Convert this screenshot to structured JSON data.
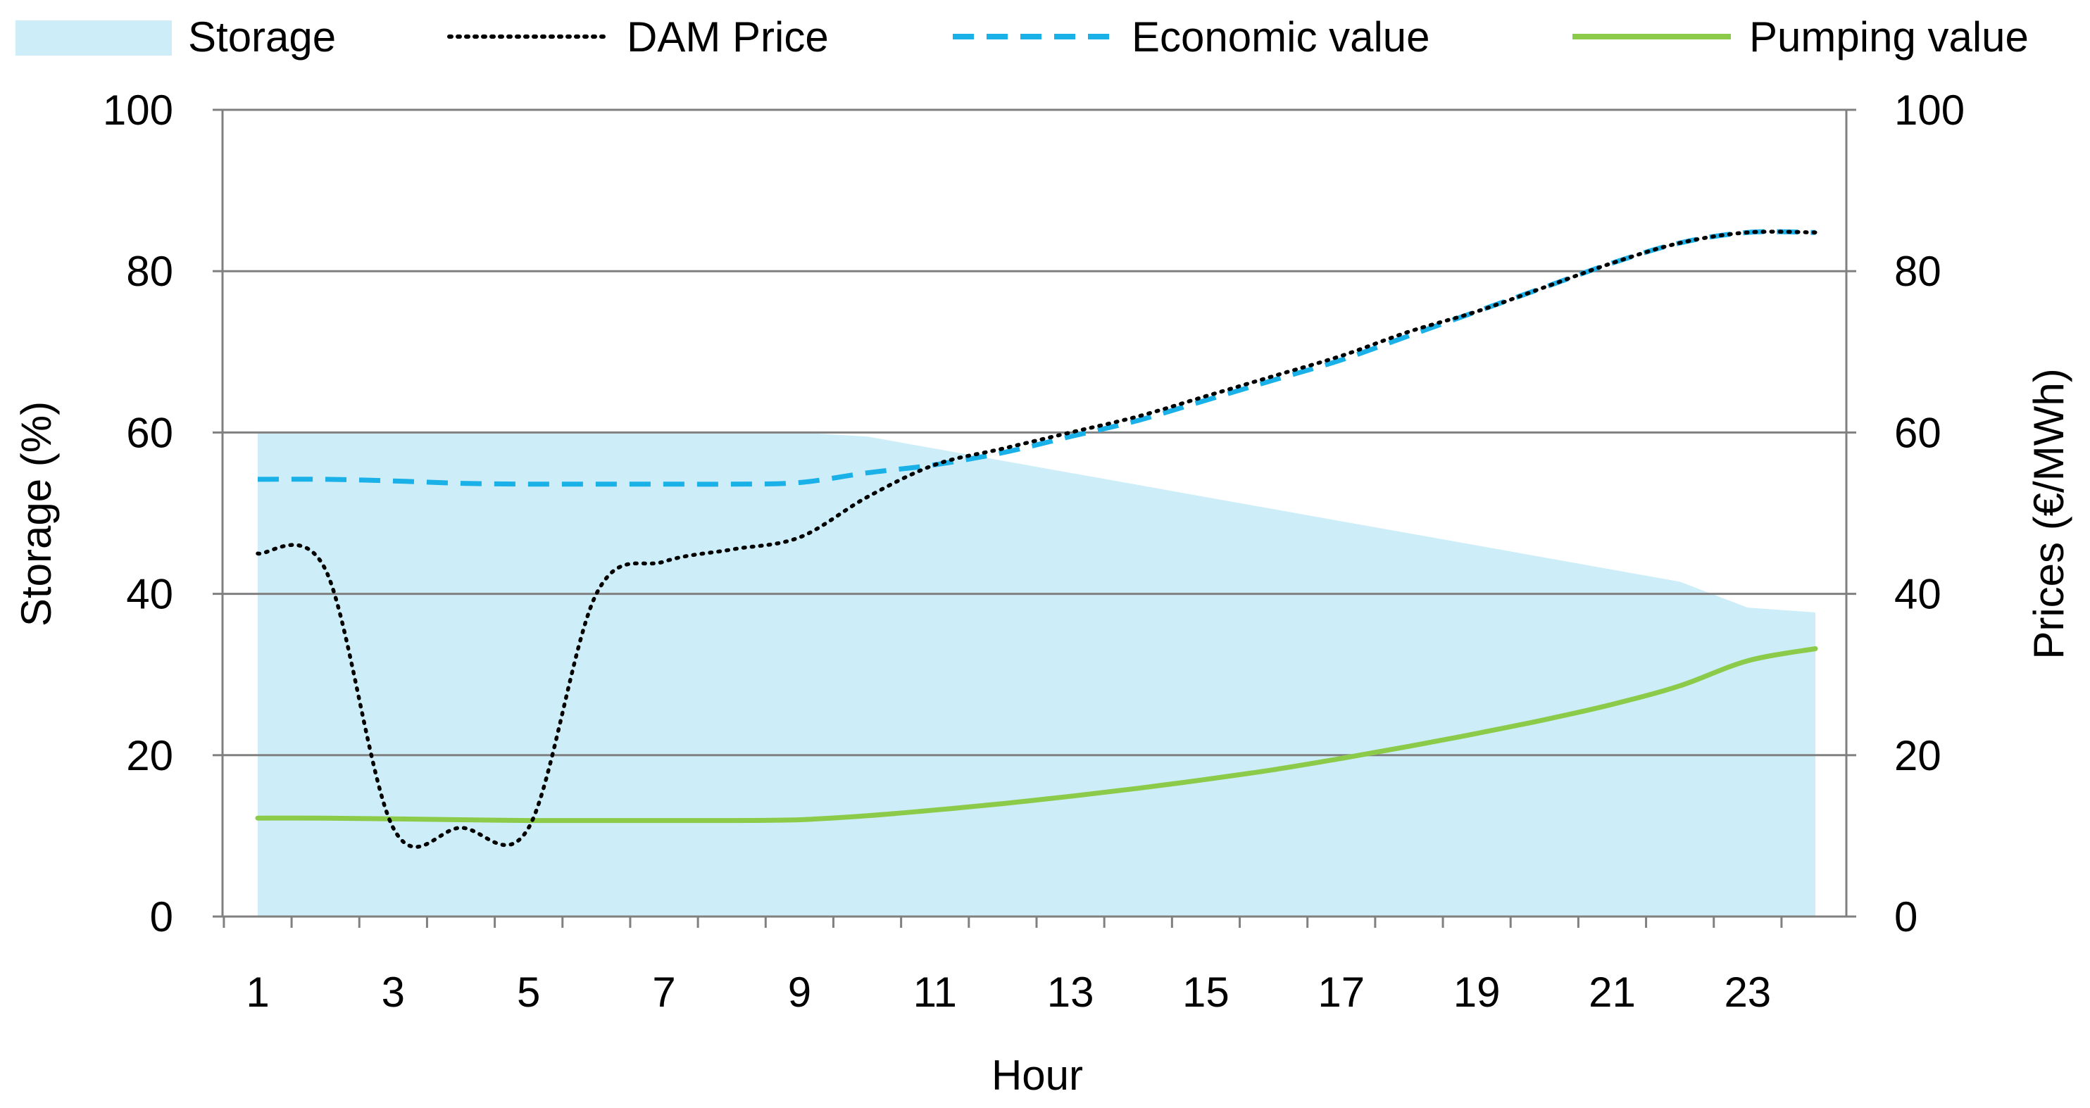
{
  "chart_data": {
    "type": "line",
    "title": "",
    "xlabel": "Hour",
    "ylabel_left": "Storage (%)",
    "ylabel_right": "Prices (€/MWh)",
    "xlim": [
      1,
      24
    ],
    "ylim_left": [
      0,
      100
    ],
    "ylim_right": [
      0,
      100
    ],
    "x_tick_labels": [
      "1",
      "3",
      "5",
      "7",
      "9",
      "11",
      "13",
      "15",
      "17",
      "19",
      "21",
      "23"
    ],
    "y_tick_labels_left": [
      "0",
      "20",
      "40",
      "60",
      "80",
      "100"
    ],
    "y_tick_labels_right": [
      "0",
      "20",
      "40",
      "60",
      "80",
      "100"
    ],
    "grid": true,
    "legend_position": "top",
    "categories": [
      1,
      2,
      3,
      4,
      5,
      6,
      7,
      8,
      9,
      10,
      11,
      12,
      13,
      14,
      15,
      16,
      17,
      18,
      19,
      20,
      21,
      22,
      23,
      24
    ],
    "series": [
      {
        "name": "Storage",
        "type": "area",
        "axis": "left",
        "color": "#cdeef9",
        "values": [
          60,
          60,
          60,
          60,
          60,
          60,
          60,
          60,
          60,
          59.5,
          58,
          56.5,
          55,
          53.5,
          52,
          50.5,
          49,
          47.5,
          46,
          44.5,
          43,
          41.5,
          38.3,
          37.7
        ]
      },
      {
        "name": "DAM Price",
        "type": "line",
        "style": "dotted",
        "axis": "right",
        "color": "#000000",
        "values": [
          45,
          43,
          11,
          11,
          11,
          40,
          44,
          45.5,
          47,
          52,
          56,
          58,
          60,
          62,
          64.5,
          67,
          69.5,
          72.5,
          75,
          78,
          81,
          83.5,
          84.8,
          84.8
        ]
      },
      {
        "name": "Economic value",
        "type": "line",
        "style": "dashed",
        "axis": "right",
        "color": "#1ab0e8",
        "values": [
          54.2,
          54.2,
          54,
          53.7,
          53.6,
          53.6,
          53.6,
          53.6,
          53.8,
          55,
          56,
          57.5,
          59.5,
          61.5,
          64,
          66.5,
          69,
          72,
          75,
          78,
          81,
          83.5,
          84.8,
          84.8
        ]
      },
      {
        "name": "Pumping value",
        "type": "line",
        "style": "solid",
        "axis": "right",
        "color": "#8ccb4a",
        "values": [
          12.2,
          12.2,
          12.1,
          12,
          11.9,
          11.9,
          11.9,
          11.9,
          12,
          12.5,
          13.2,
          14,
          14.9,
          15.9,
          17,
          18.2,
          19.6,
          21.1,
          22.7,
          24.4,
          26.3,
          28.6,
          31.7,
          33.2
        ]
      }
    ]
  }
}
